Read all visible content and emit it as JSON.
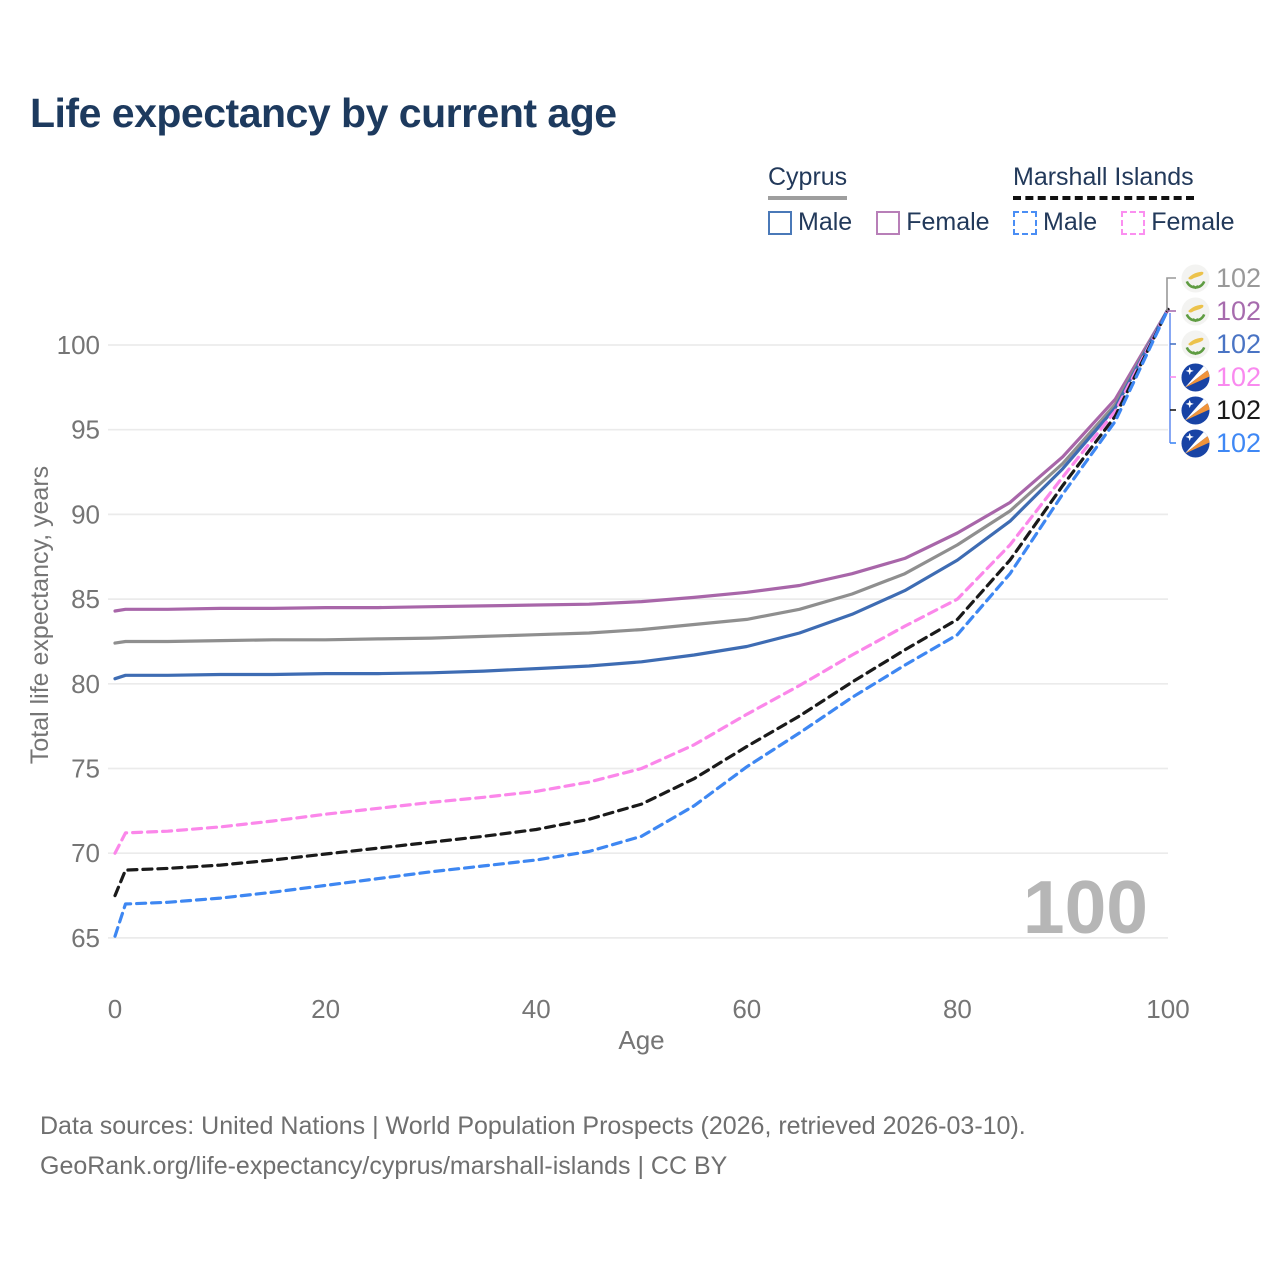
{
  "title": "Life expectancy by current age",
  "legend": {
    "groups": [
      {
        "name": "Cyprus",
        "line_style": "solid",
        "underline_color": "#9e9e9e",
        "items": [
          {
            "label": "Male",
            "color": "#4a79b8"
          },
          {
            "label": "Female",
            "color": "#b87fb8"
          }
        ]
      },
      {
        "name": "Marshall Islands",
        "line_style": "dashed",
        "underline_color": "#111111",
        "items": [
          {
            "label": "Male",
            "color": "#4a8ef5"
          },
          {
            "label": "Female",
            "color": "#fb8ff0"
          }
        ]
      }
    ]
  },
  "chart_data": {
    "type": "line",
    "title": "Life expectancy by current age",
    "xlabel": "Age",
    "ylabel": "Total life expectancy, years",
    "xlim": [
      0,
      100
    ],
    "ylim": [
      65,
      102.5
    ],
    "xticks": [
      0,
      20,
      40,
      60,
      80,
      100
    ],
    "yticks": [
      65,
      70,
      75,
      80,
      85,
      90,
      95,
      100
    ],
    "grid": "horizontal",
    "legend_position": "top-right",
    "hover_age": "100",
    "x": [
      0,
      1,
      5,
      10,
      15,
      20,
      25,
      30,
      35,
      40,
      45,
      50,
      55,
      60,
      65,
      70,
      75,
      80,
      85,
      90,
      95,
      100
    ],
    "series": [
      {
        "name": "Cyprus Female",
        "country": "Cyprus",
        "group": "Female",
        "style": "solid",
        "color": "#a866a9",
        "values": [
          84.3,
          84.4,
          84.4,
          84.45,
          84.45,
          84.5,
          84.5,
          84.55,
          84.6,
          84.65,
          84.7,
          84.85,
          85.1,
          85.4,
          85.8,
          86.5,
          87.4,
          88.9,
          90.7,
          93.4,
          96.8,
          102.1
        ]
      },
      {
        "name": "Cyprus Total",
        "country": "Cyprus",
        "group": "Total",
        "style": "solid",
        "color": "#8f8f8f",
        "values": [
          82.4,
          82.5,
          82.5,
          82.55,
          82.6,
          82.6,
          82.65,
          82.7,
          82.8,
          82.9,
          83.0,
          83.2,
          83.5,
          83.8,
          84.4,
          85.3,
          86.5,
          88.2,
          90.2,
          93.0,
          96.5,
          102.1
        ]
      },
      {
        "name": "Cyprus Male",
        "country": "Cyprus",
        "group": "Male",
        "style": "solid",
        "color": "#3e6cb3",
        "values": [
          80.3,
          80.5,
          80.5,
          80.55,
          80.55,
          80.6,
          80.6,
          80.65,
          80.75,
          80.9,
          81.05,
          81.3,
          81.7,
          82.2,
          83.0,
          84.1,
          85.5,
          87.3,
          89.6,
          92.7,
          96.3,
          102.1
        ]
      },
      {
        "name": "Marshall Islands Female",
        "country": "Marshall Islands",
        "group": "Female",
        "style": "dashed",
        "color": "#fb87ea",
        "values": [
          70.0,
          71.2,
          71.3,
          71.55,
          71.9,
          72.3,
          72.65,
          73.0,
          73.3,
          73.65,
          74.2,
          75.0,
          76.4,
          78.2,
          79.9,
          81.7,
          83.4,
          85.0,
          88.2,
          92.2,
          96.1,
          102.1
        ]
      },
      {
        "name": "Marshall Islands Total",
        "country": "Marshall Islands",
        "group": "Total",
        "style": "dashed",
        "color": "#1a1a1a",
        "values": [
          67.5,
          69.0,
          69.1,
          69.3,
          69.6,
          69.95,
          70.3,
          70.65,
          71.0,
          71.4,
          72.0,
          72.9,
          74.4,
          76.3,
          78.1,
          80.1,
          82.0,
          83.8,
          87.3,
          91.7,
          95.8,
          102.1
        ]
      },
      {
        "name": "Marshall Islands Male",
        "country": "Marshall Islands",
        "group": "Male",
        "style": "dashed",
        "color": "#3e87f2",
        "values": [
          65.1,
          67.0,
          67.1,
          67.35,
          67.7,
          68.1,
          68.5,
          68.9,
          69.25,
          69.6,
          70.1,
          71.0,
          72.8,
          75.1,
          77.1,
          79.2,
          81.1,
          82.9,
          86.5,
          91.2,
          95.5,
          102.1
        ]
      }
    ],
    "end_labels": [
      {
        "value": "102",
        "color": "#999999",
        "flag": "cyprus-flag",
        "series": "Cyprus Total"
      },
      {
        "value": "102",
        "color": "#a76cae",
        "flag": "cyprus-flag",
        "series": "Cyprus Female"
      },
      {
        "value": "102",
        "color": "#4a74c4",
        "flag": "cyprus-flag",
        "series": "Cyprus Male"
      },
      {
        "value": "102",
        "color": "#f98aef",
        "flag": "marshall-islands-flag",
        "series": "Marshall Islands Female"
      },
      {
        "value": "102",
        "color": "#1a1a1a",
        "flag": "marshall-islands-flag",
        "series": "Marshall Islands Total"
      },
      {
        "value": "102",
        "color": "#3f88f5",
        "flag": "marshall-islands-flag",
        "series": "Marshall Islands Male"
      }
    ]
  },
  "footer": {
    "line1": "Data sources: United Nations | World Population Prospects (2026, retrieved 2026-03-10).",
    "line2": "GeoRank.org/life-expectancy/cyprus/marshall-islands | CC BY"
  }
}
